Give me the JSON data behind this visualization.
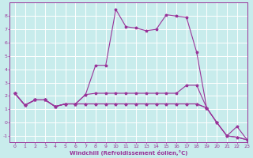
{
  "xlabel": "Windchill (Refroidissement éolien,°C)",
  "bg_color": "#c8ecec",
  "grid_color": "#ffffff",
  "line_color": "#993399",
  "xlim": [
    -0.5,
    23
  ],
  "ylim": [
    -1.5,
    9.0
  ],
  "yticks": [
    -1,
    0,
    1,
    2,
    3,
    4,
    5,
    6,
    7,
    8
  ],
  "xticks": [
    0,
    1,
    2,
    3,
    4,
    5,
    6,
    7,
    8,
    9,
    10,
    11,
    12,
    13,
    14,
    15,
    16,
    17,
    18,
    19,
    20,
    21,
    22,
    23
  ],
  "series": [
    [
      2.2,
      1.3,
      1.7,
      1.7,
      1.2,
      1.4,
      1.4,
      2.1,
      4.3,
      4.3,
      8.5,
      7.2,
      7.1,
      6.9,
      7.0,
      8.1,
      8.0,
      7.9,
      5.3,
      1.1,
      null,
      null,
      null,
      null
    ],
    [
      2.2,
      1.3,
      1.7,
      1.7,
      1.2,
      1.4,
      1.4,
      2.1,
      2.2,
      2.2,
      2.2,
      2.2,
      2.2,
      2.2,
      2.2,
      2.2,
      2.2,
      2.8,
      2.8,
      1.1,
      0.0,
      -1.0,
      -1.1,
      -1.3
    ],
    [
      2.2,
      1.3,
      1.7,
      1.7,
      1.2,
      1.4,
      1.4,
      1.4,
      1.4,
      1.4,
      1.4,
      1.4,
      1.4,
      1.4,
      1.4,
      1.4,
      1.4,
      1.4,
      1.4,
      1.1,
      0.0,
      -1.0,
      -0.3,
      -1.3
    ],
    [
      2.2,
      1.3,
      1.7,
      1.7,
      1.2,
      1.4,
      1.4,
      1.4,
      1.4,
      1.4,
      1.4,
      1.4,
      1.4,
      1.4,
      1.4,
      1.4,
      1.4,
      1.4,
      1.4,
      1.1,
      0.0,
      -1.0,
      -1.1,
      -1.3
    ]
  ]
}
